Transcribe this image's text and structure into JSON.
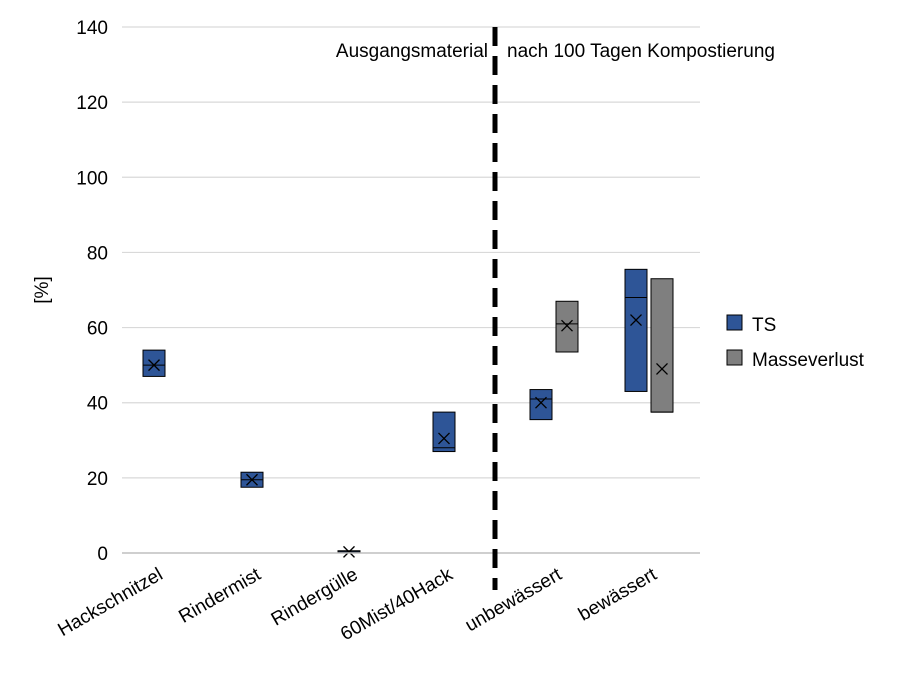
{
  "chart_data": {
    "type": "box",
    "ylabel": "[%]",
    "ylim": [
      0,
      140
    ],
    "yticks": [
      0,
      20,
      40,
      60,
      80,
      100,
      120,
      140
    ],
    "grid": "horizontal",
    "legend_position": "right",
    "categories": [
      "Hackschnitzel",
      "Rindermist",
      "Rindergülle",
      "60Mist/40Hack",
      "unbewässert",
      "bewässert"
    ],
    "annotations": {
      "left": "Ausgangsmaterial",
      "right": "nach 100 Tagen Kompostierung"
    },
    "series": [
      {
        "name": "TS",
        "color": "#2e5597",
        "boxes": [
          {
            "category": "Hackschnitzel",
            "min": 47,
            "median": 50,
            "max": 54,
            "mean": 50
          },
          {
            "category": "Rindermist",
            "min": 17.5,
            "median": 19.5,
            "max": 21.5,
            "mean": 19.5
          },
          {
            "category": "Rindergülle",
            "min": 0,
            "median": 0.3,
            "max": 0.6,
            "mean": 0.3
          },
          {
            "category": "60Mist/40Hack",
            "min": 27,
            "median": 28,
            "max": 37.5,
            "mean": 30.5
          },
          {
            "category": "unbewässert",
            "min": 35.5,
            "median": 41,
            "max": 43.5,
            "mean": 40
          },
          {
            "category": "bewässert",
            "min": 43,
            "median": 68,
            "max": 75.5,
            "mean": 62
          }
        ]
      },
      {
        "name": "Masseverlust",
        "color": "#7f7f7f",
        "boxes": [
          {
            "category": "unbewässert",
            "min": 53.5,
            "median": 61,
            "max": 67,
            "mean": 60.5
          },
          {
            "category": "bewässert",
            "min": 37.5,
            "median": 37.5,
            "max": 73,
            "mean": 49
          }
        ]
      }
    ]
  }
}
